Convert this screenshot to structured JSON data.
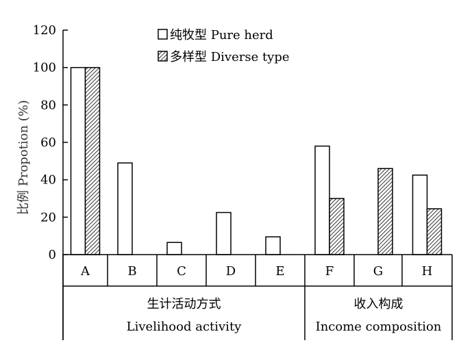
{
  "chart_data": {
    "type": "bar",
    "ylabel": "比例 Propotion (%)",
    "ylim": [
      0,
      120
    ],
    "yticks": [
      0,
      20,
      40,
      60,
      80,
      100,
      120
    ],
    "categories": [
      "A",
      "B",
      "C",
      "D",
      "E",
      "F",
      "G",
      "H"
    ],
    "series": [
      {
        "name": "纯牧型 Pure herd",
        "values": [
          100,
          49,
          6.5,
          22.5,
          9.5,
          58,
          0,
          42.5
        ]
      },
      {
        "name": "多样型 Diverse type",
        "values": [
          100,
          0,
          0,
          0,
          0,
          30,
          46,
          24.5
        ]
      }
    ],
    "groups": [
      {
        "name_cn": "生计活动方式",
        "name_en": "Livelihood activity",
        "categories": [
          "A",
          "B",
          "C",
          "D",
          "E"
        ]
      },
      {
        "name_cn": "收入构成",
        "name_en": "Income composition",
        "categories": [
          "F",
          "G",
          "H"
        ]
      }
    ],
    "legend_position": "top-center",
    "grid": false,
    "colors": {
      "pure_herd_fill": "#ffffff",
      "diverse_fill": "hatched",
      "stroke": "#000000"
    }
  }
}
